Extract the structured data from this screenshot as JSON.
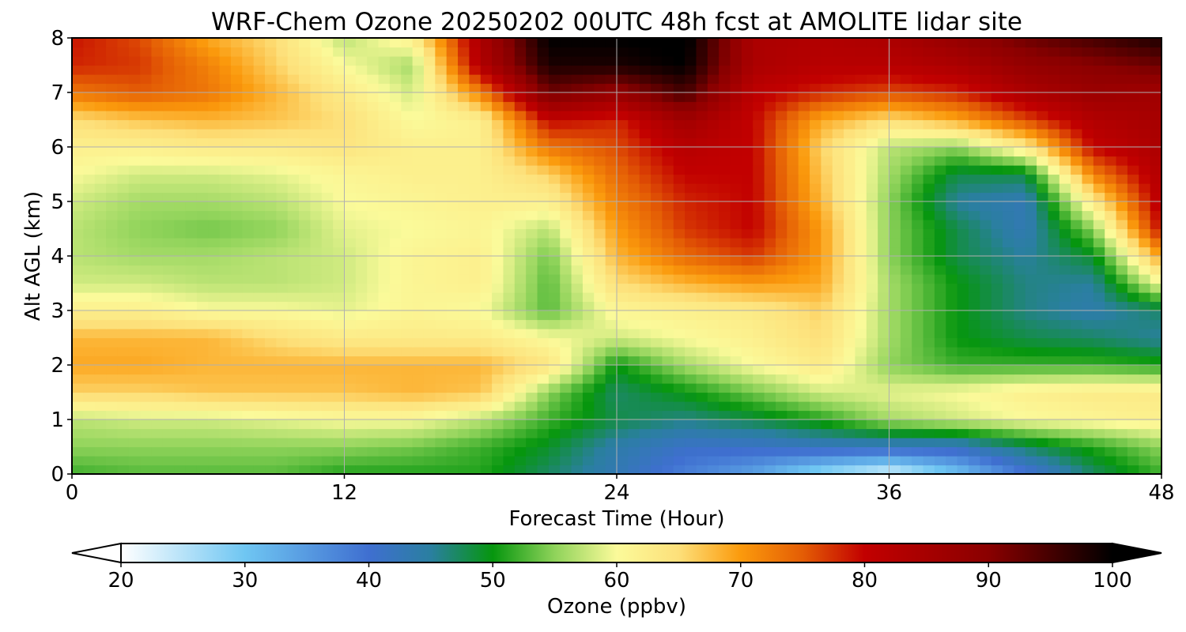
{
  "chart_data": {
    "type": "heatmap",
    "title": "WRF-Chem Ozone  20250202 00UTC 48h fcst at AMOLITE lidar site",
    "xlabel": "Forecast Time (Hour)",
    "ylabel": "Alt AGL (km)",
    "xlim": [
      0,
      48
    ],
    "ylim": [
      0,
      8
    ],
    "x_ticks": [
      "0",
      "12",
      "24",
      "36",
      "48"
    ],
    "y_ticks": [
      "0",
      "1",
      "2",
      "3",
      "4",
      "5",
      "6",
      "7",
      "8"
    ],
    "grid": true,
    "x": [
      0,
      3,
      6,
      9,
      12,
      15,
      18,
      21,
      24,
      27,
      30,
      33,
      36,
      39,
      42,
      45,
      48
    ],
    "y": [
      0,
      0.5,
      1,
      1.5,
      2,
      2.5,
      3,
      3.5,
      4,
      4.5,
      5,
      5.5,
      6,
      6.5,
      7,
      7.5,
      8
    ],
    "z_units": "ppbv",
    "z": [
      [
        52,
        53,
        53,
        53,
        51,
        51,
        51,
        47,
        43,
        38,
        34,
        27,
        22,
        30,
        39,
        47,
        52
      ],
      [
        55,
        55,
        55,
        55,
        55,
        54,
        52,
        49,
        44,
        41,
        41,
        42,
        42,
        42,
        47,
        51,
        55
      ],
      [
        57,
        58,
        58,
        59,
        60,
        60,
        57,
        52,
        48,
        46,
        48,
        51,
        56,
        58,
        60,
        61,
        62
      ],
      [
        66,
        66,
        67,
        67,
        67,
        68,
        67,
        55,
        47,
        50,
        54,
        58,
        59,
        60,
        62,
        63,
        63
      ],
      [
        69,
        69,
        68,
        68,
        68,
        68,
        68,
        64,
        50,
        56,
        60,
        63,
        55,
        52,
        52,
        52,
        51
      ],
      [
        68,
        68,
        68,
        65,
        63,
        63,
        63,
        60,
        58,
        60,
        62,
        65,
        56,
        50,
        48,
        47,
        45
      ],
      [
        62,
        62,
        60,
        60,
        59,
        61,
        60,
        53,
        61,
        62,
        63,
        66,
        56,
        50,
        46,
        44,
        47
      ],
      [
        58,
        58,
        57,
        57,
        58,
        61,
        62,
        53,
        65,
        68,
        70,
        69,
        56,
        50,
        46,
        45,
        60
      ],
      [
        57,
        56,
        56,
        57,
        58,
        61,
        62,
        54,
        68,
        74,
        77,
        70,
        55,
        48,
        45,
        49,
        70
      ],
      [
        57,
        55,
        54,
        55,
        59,
        60,
        61,
        57,
        70,
        77,
        80,
        70,
        55,
        48,
        43,
        55,
        80
      ],
      [
        58,
        56,
        56,
        57,
        60,
        61,
        62,
        62,
        72,
        78,
        80,
        68,
        55,
        45,
        43,
        63,
        82
      ],
      [
        60,
        58,
        58,
        59,
        61,
        62,
        62,
        66,
        74,
        80,
        80,
        67,
        56,
        48,
        48,
        72,
        83
      ],
      [
        62,
        62,
        63,
        63,
        64,
        62,
        62,
        73,
        76,
        82,
        80,
        66,
        57,
        55,
        63,
        80,
        84
      ],
      [
        65,
        67,
        68,
        67,
        65,
        60,
        62,
        80,
        78,
        86,
        80,
        69,
        65,
        69,
        76,
        83,
        85
      ],
      [
        73,
        75,
        73,
        68,
        63,
        58,
        72,
        92,
        88,
        95,
        81,
        78,
        76,
        78,
        84,
        87,
        86
      ],
      [
        78,
        77,
        72,
        66,
        60,
        56,
        83,
        98,
        98,
        100,
        84,
        82,
        82,
        84,
        88,
        90,
        92
      ],
      [
        79,
        76,
        69,
        65,
        57,
        62,
        84,
        100,
        100,
        101,
        84,
        83,
        84,
        88,
        92,
        95,
        98
      ]
    ],
    "colorbar": {
      "label": "Ozone  (ppbv)",
      "min": 20,
      "max": 100,
      "ticks": [
        "20",
        "30",
        "40",
        "50",
        "60",
        "70",
        "80",
        "90",
        "100"
      ],
      "extend": "both",
      "color_stops": [
        {
          "value": 20,
          "color": "#ffffff"
        },
        {
          "value": 30,
          "color": "#6fc6f2"
        },
        {
          "value": 40,
          "color": "#3f6fd0"
        },
        {
          "value": 45,
          "color": "#2a7fa0"
        },
        {
          "value": 50,
          "color": "#06960e"
        },
        {
          "value": 55,
          "color": "#8fd35a"
        },
        {
          "value": 60,
          "color": "#fbfa9a"
        },
        {
          "value": 65,
          "color": "#fde07a"
        },
        {
          "value": 70,
          "color": "#fb9a0c"
        },
        {
          "value": 75,
          "color": "#e45d05"
        },
        {
          "value": 80,
          "color": "#c20000"
        },
        {
          "value": 90,
          "color": "#8a0000"
        },
        {
          "value": 100,
          "color": "#000000"
        }
      ]
    }
  }
}
